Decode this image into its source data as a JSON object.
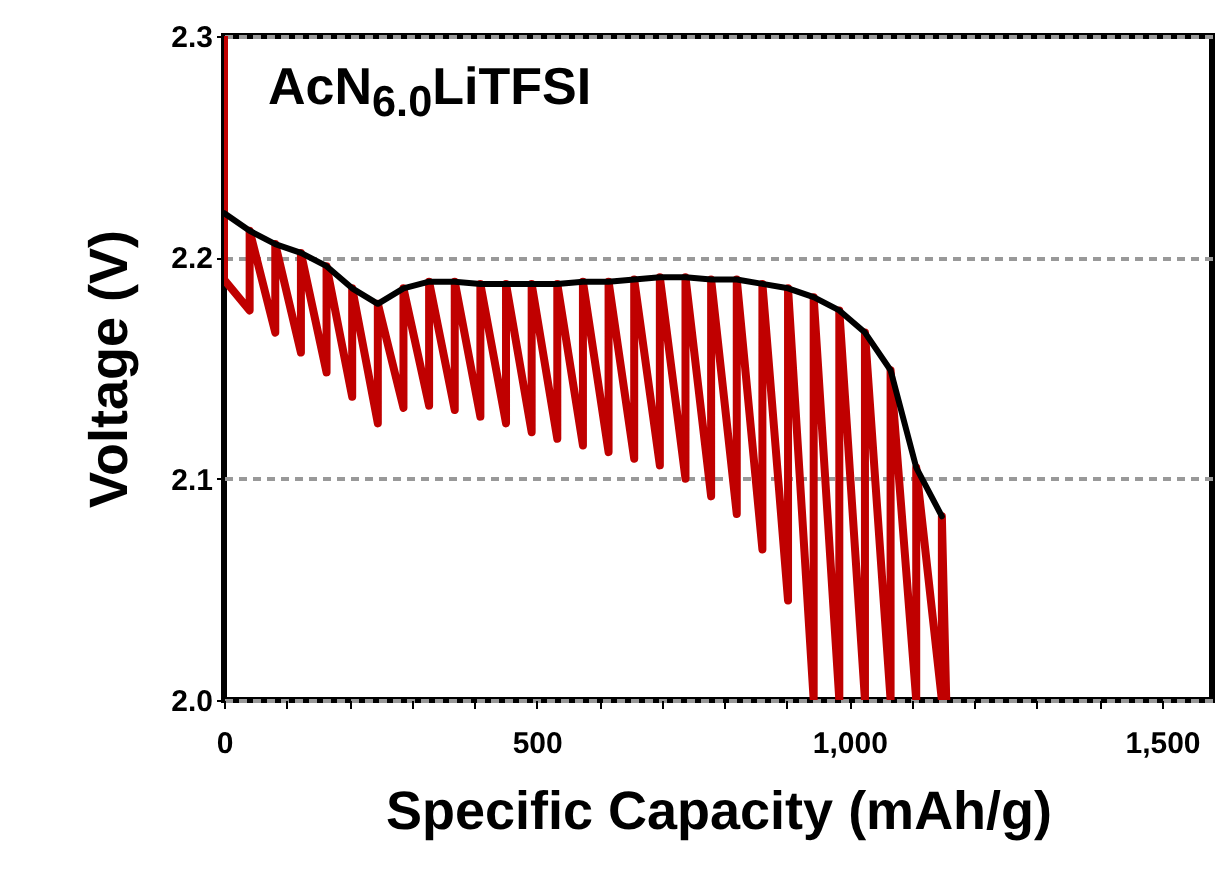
{
  "chart_data": {
    "type": "line",
    "xlabel": "Specific Capacity (mAh/g)",
    "ylabel": "Voltage (V)",
    "annotations": [
      "AcN$_{6.0}$LiTFSI"
    ],
    "xlim": [
      0,
      1580
    ],
    "ylim": [
      2.0,
      2.3
    ],
    "xticks": [
      0,
      {
        "value": 100,
        "label": null
      },
      {
        "value": 200,
        "label": null
      },
      {
        "value": 300,
        "label": null
      },
      {
        "value": 400,
        "label": null
      },
      500,
      {
        "value": 600,
        "label": null
      },
      {
        "value": 700,
        "label": null
      },
      {
        "value": 800,
        "label": null
      },
      {
        "value": 900,
        "label": null
      },
      {
        "value": 1000,
        "label": "1,000"
      },
      {
        "value": 1100,
        "label": null
      },
      {
        "value": 1200,
        "label": null
      },
      {
        "value": 1300,
        "label": null
      },
      {
        "value": 1400,
        "label": null
      },
      {
        "value": 1500,
        "label": "1,500"
      }
    ],
    "yticks": [
      {
        "value": 2.0,
        "label": "2.0"
      },
      {
        "value": 2.1,
        "label": "2.1"
      },
      {
        "value": 2.2,
        "label": "2.2"
      },
      {
        "value": 2.3,
        "label": "2.3"
      }
    ],
    "grid": "y",
    "marker": "none",
    "line_style": "solid",
    "series": [
      {
        "type": "line",
        "color": "#c00000",
        "x": [
          0,
          0,
          41,
          41,
          82,
          82,
          123,
          123,
          164,
          164,
          205,
          205,
          246,
          246,
          287,
          287,
          328,
          328,
          369,
          369,
          410,
          410,
          451,
          451,
          492,
          492,
          533,
          533,
          574,
          574,
          615,
          615,
          656,
          656,
          697,
          697,
          738,
          738,
          779,
          779,
          820,
          820,
          861,
          861,
          902,
          902,
          943,
          943,
          984,
          984,
          1025,
          1025,
          1066,
          1066,
          1107,
          1107,
          1148,
          1148,
          1155
        ],
        "values": [
          2.3,
          2.19,
          2.176,
          2.212,
          2.166,
          2.206,
          2.157,
          2.202,
          2.148,
          2.196,
          2.137,
          2.186,
          2.125,
          2.179,
          2.132,
          2.186,
          2.133,
          2.189,
          2.131,
          2.189,
          2.128,
          2.188,
          2.125,
          2.188,
          2.121,
          2.188,
          2.118,
          2.188,
          2.115,
          2.189,
          2.112,
          2.189,
          2.109,
          2.19,
          2.106,
          2.191,
          2.1,
          2.191,
          2.092,
          2.19,
          2.084,
          2.19,
          2.068,
          2.188,
          2.045,
          2.186,
          2.0,
          2.182,
          2.0,
          2.176,
          2.0,
          2.166,
          2.0,
          2.149,
          2.0,
          2.105,
          2.0,
          2.083,
          2.0
        ]
      },
      {
        "type": "line",
        "color": "#000000",
        "x": [
          0,
          41,
          82,
          123,
          164,
          205,
          246,
          287,
          328,
          369,
          410,
          451,
          492,
          533,
          574,
          615,
          656,
          697,
          738,
          779,
          820,
          861,
          902,
          943,
          984,
          1025,
          1066,
          1107,
          1148
        ],
        "values": [
          2.22,
          2.212,
          2.206,
          2.202,
          2.196,
          2.186,
          2.179,
          2.186,
          2.189,
          2.189,
          2.188,
          2.188,
          2.188,
          2.188,
          2.189,
          2.189,
          2.19,
          2.191,
          2.191,
          2.19,
          2.19,
          2.188,
          2.186,
          2.182,
          2.176,
          2.166,
          2.149,
          2.105,
          2.083
        ]
      }
    ]
  }
}
